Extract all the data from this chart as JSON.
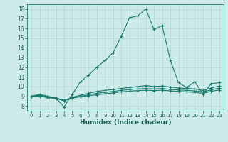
{
  "xlabel": "Humidex (Indice chaleur)",
  "bg_color": "#cceae7",
  "grid_color": "#aad4d0",
  "line_color": "#1a7a6e",
  "xlim": [
    -0.5,
    23.5
  ],
  "ylim": [
    7.5,
    18.5
  ],
  "xticks": [
    0,
    1,
    2,
    3,
    4,
    5,
    6,
    7,
    8,
    9,
    10,
    11,
    12,
    13,
    14,
    15,
    16,
    17,
    18,
    19,
    20,
    21,
    22,
    23
  ],
  "yticks": [
    8,
    9,
    10,
    11,
    12,
    13,
    14,
    15,
    16,
    17,
    18
  ],
  "lines": [
    {
      "x": [
        0,
        1,
        2,
        3,
        4,
        5,
        6,
        7,
        8,
        9,
        10,
        11,
        12,
        13,
        14,
        15,
        16,
        17,
        18,
        19,
        20,
        21,
        22,
        23
      ],
      "y": [
        9.0,
        9.2,
        9.0,
        8.8,
        7.9,
        9.2,
        10.5,
        11.2,
        12.0,
        12.7,
        13.5,
        15.2,
        17.1,
        17.3,
        18.0,
        15.9,
        16.3,
        12.7,
        10.4,
        9.9,
        10.5,
        9.2,
        10.3,
        10.4
      ]
    },
    {
      "x": [
        0,
        1,
        2,
        3,
        4,
        5,
        6,
        7,
        8,
        9,
        10,
        11,
        12,
        13,
        14,
        15,
        16,
        17,
        18,
        19,
        20,
        21,
        22,
        23
      ],
      "y": [
        9.0,
        9.1,
        8.95,
        8.85,
        8.5,
        8.9,
        9.1,
        9.3,
        9.5,
        9.6,
        9.7,
        9.8,
        9.9,
        10.0,
        10.1,
        10.0,
        10.05,
        9.95,
        9.85,
        9.8,
        9.75,
        9.6,
        9.85,
        10.05
      ]
    },
    {
      "x": [
        0,
        1,
        2,
        3,
        4,
        5,
        6,
        7,
        8,
        9,
        10,
        11,
        12,
        13,
        14,
        15,
        16,
        17,
        18,
        19,
        20,
        21,
        22,
        23
      ],
      "y": [
        9.0,
        9.05,
        8.9,
        8.8,
        8.6,
        8.85,
        9.0,
        9.15,
        9.3,
        9.4,
        9.5,
        9.6,
        9.7,
        9.75,
        9.8,
        9.75,
        9.8,
        9.7,
        9.65,
        9.6,
        9.55,
        9.45,
        9.65,
        9.85
      ]
    },
    {
      "x": [
        0,
        1,
        2,
        3,
        4,
        5,
        6,
        7,
        8,
        9,
        10,
        11,
        12,
        13,
        14,
        15,
        16,
        17,
        18,
        19,
        20,
        21,
        22,
        23
      ],
      "y": [
        9.0,
        9.0,
        8.85,
        8.75,
        8.55,
        8.8,
        8.95,
        9.05,
        9.15,
        9.25,
        9.35,
        9.45,
        9.52,
        9.58,
        9.62,
        9.58,
        9.62,
        9.55,
        9.5,
        9.45,
        9.4,
        9.3,
        9.5,
        9.65
      ]
    }
  ]
}
